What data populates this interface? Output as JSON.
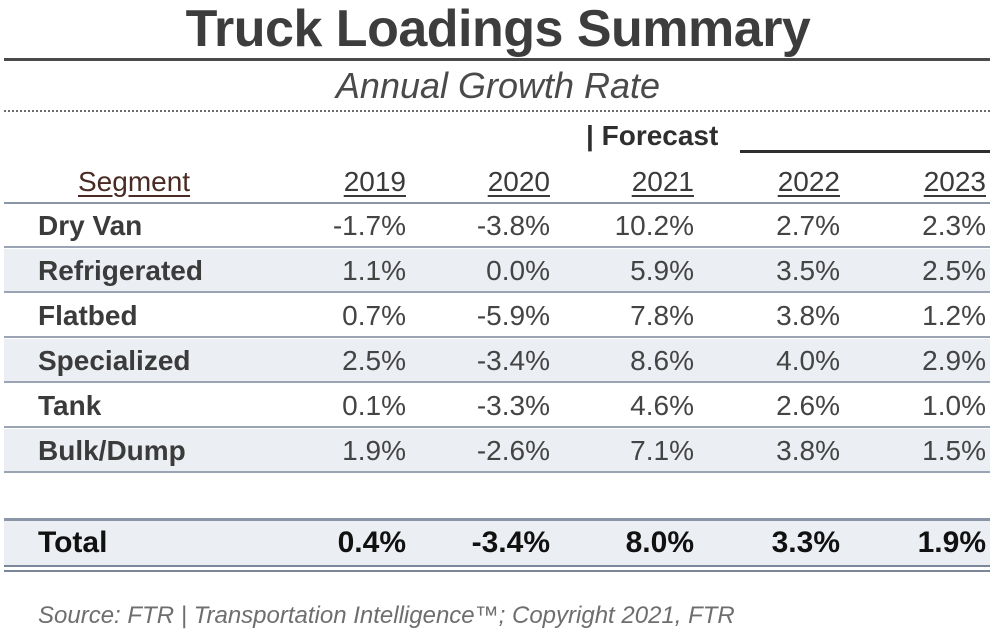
{
  "title": "Truck Loadings Summary",
  "subtitle": "Annual Growth Rate",
  "forecast_label": "| Forecast",
  "source": "Source: FTR | Transportation Intelligence™; Copyright 2021, FTR",
  "colors": {
    "row_alt": "#ebeef2",
    "rule": "#8a96a8",
    "segment_header": "#4a2b24"
  },
  "chart_data": {
    "type": "table",
    "title": "Truck Loadings Summary",
    "subtitle": "Annual Growth Rate",
    "row_header": "Segment",
    "columns": [
      "2019",
      "2020",
      "2021",
      "2022",
      "2023"
    ],
    "forecast_columns": [
      "2021",
      "2022",
      "2023"
    ],
    "rows": [
      {
        "label": "Dry Van",
        "values": [
          "-1.7%",
          "-3.8%",
          "10.2%",
          "2.7%",
          "2.3%"
        ]
      },
      {
        "label": "Refrigerated",
        "values": [
          "1.1%",
          "0.0%",
          "5.9%",
          "3.5%",
          "2.5%"
        ]
      },
      {
        "label": "Flatbed",
        "values": [
          "0.7%",
          "-5.9%",
          "7.8%",
          "3.8%",
          "1.2%"
        ]
      },
      {
        "label": "Specialized",
        "values": [
          "2.5%",
          "-3.4%",
          "8.6%",
          "4.0%",
          "2.9%"
        ]
      },
      {
        "label": "Tank",
        "values": [
          "0.1%",
          "-3.3%",
          "4.6%",
          "2.6%",
          "1.0%"
        ]
      },
      {
        "label": "Bulk/Dump",
        "values": [
          "1.9%",
          "-2.6%",
          "7.1%",
          "3.8%",
          "1.5%"
        ]
      }
    ],
    "total": {
      "label": "Total",
      "values": [
        "0.4%",
        "-3.4%",
        "8.0%",
        "3.3%",
        "1.9%"
      ]
    }
  }
}
